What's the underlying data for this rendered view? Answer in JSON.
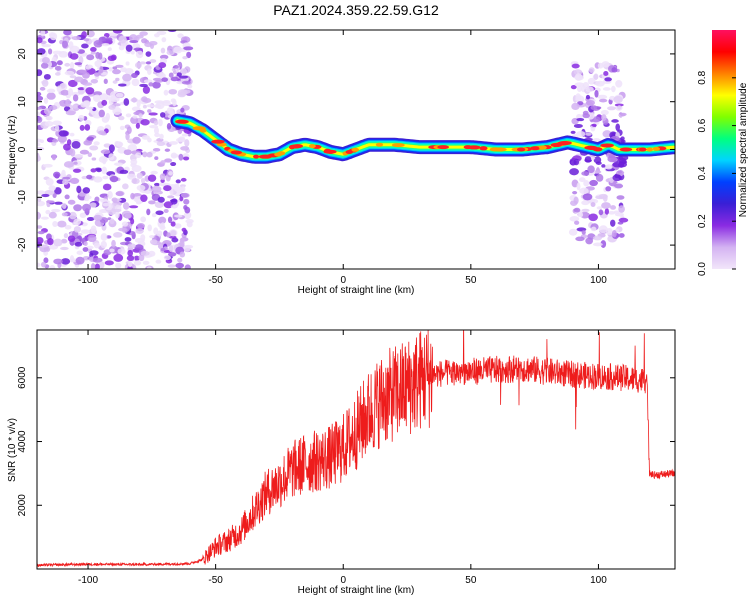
{
  "figure_title": "PAZ1.2024.359.22.59.G12",
  "chart_data": [
    {
      "type": "heatmap",
      "title": "",
      "xlabel": "Height of straight line (km)",
      "ylabel": "Frequency (Hz)",
      "xlim": [
        -120,
        130
      ],
      "ylim": [
        -25,
        25
      ],
      "x_ticks": [
        -100,
        -50,
        0,
        50,
        100
      ],
      "y_ticks": [
        -20,
        -10,
        0,
        10,
        20
      ],
      "colorbar": {
        "label": "Normalized spectral amplitude",
        "range": [
          0,
          1
        ],
        "ticks": [
          0.0,
          0.2,
          0.4,
          0.6,
          0.8
        ],
        "colormap": [
          "#f2e6fa",
          "#d4b3f2",
          "#8a2be2",
          "#3a1fd6",
          "#0040ff",
          "#00d4ff",
          "#00ff80",
          "#80ff00",
          "#ffff00",
          "#ff8000",
          "#ff0000",
          "#ff1060"
        ]
      },
      "ridge": {
        "x": [
          -65,
          -60,
          -55,
          -50,
          -45,
          -40,
          -35,
          -30,
          -25,
          -20,
          -15,
          -10,
          -5,
          0,
          5,
          10,
          20,
          30,
          40,
          50,
          60,
          70,
          80,
          88,
          92,
          96,
          100,
          104,
          108,
          112,
          120,
          130
        ],
        "frequency": [
          6,
          5.5,
          4,
          2,
          0,
          -1,
          -1.5,
          -1.5,
          -1,
          0.5,
          1,
          0.5,
          -0.5,
          -1,
          0,
          1,
          1,
          0.5,
          0.5,
          0.5,
          0,
          0,
          0.5,
          1.5,
          1,
          0.5,
          0,
          1,
          0,
          0,
          0,
          0.5
        ]
      },
      "noise_regions": [
        {
          "x": [
            -120,
            -60
          ],
          "y": [
            -25,
            25
          ],
          "amplitude": 0.3
        },
        {
          "x": [
            90,
            110
          ],
          "y": [
            -20,
            18
          ],
          "amplitude": 0.3
        }
      ]
    },
    {
      "type": "line",
      "title": "",
      "xlabel": "Height of straight line (km)",
      "ylabel": "SNR (10 * v/v)",
      "xlim": [
        -120,
        130
      ],
      "ylim": [
        0,
        7500
      ],
      "x_ticks": [
        -100,
        -50,
        0,
        50,
        100
      ],
      "y_ticks": [
        2000,
        4000,
        6000
      ],
      "line_color": "#ee1c1c",
      "series": [
        {
          "x": [
            -120,
            -100,
            -80,
            -60,
            -55,
            -50,
            -45,
            -40,
            -35,
            -30,
            -25,
            -20,
            -15,
            -10,
            -5,
            0,
            5,
            10,
            15,
            20,
            25,
            30,
            35,
            40,
            50,
            60,
            70,
            80,
            90,
            100,
            110,
            119,
            120,
            122,
            130
          ],
          "values": [
            120,
            150,
            140,
            170,
            300,
            700,
            900,
            1200,
            1800,
            2400,
            2700,
            3100,
            3300,
            3400,
            3500,
            3800,
            4300,
            4900,
            5300,
            5500,
            5700,
            5950,
            6100,
            6150,
            6200,
            6250,
            6300,
            6200,
            6100,
            6050,
            6000,
            5900,
            3000,
            2950,
            3000
          ]
        }
      ]
    }
  ]
}
